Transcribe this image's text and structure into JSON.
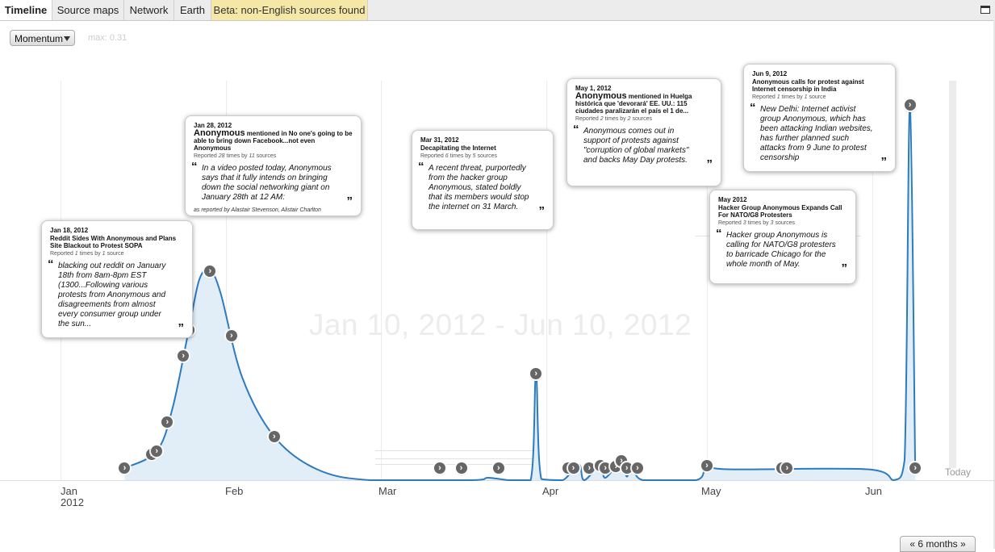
{
  "tabs": [
    {
      "label": "Timeline",
      "active": true
    },
    {
      "label": "Source maps"
    },
    {
      "label": "Network"
    },
    {
      "label": "Earth"
    },
    {
      "label": "Beta: non-English sources found",
      "highlight": true
    }
  ],
  "controls": {
    "metric_select": "Momentum",
    "max_label": "max: 0.31",
    "range_button": "« 6 months »",
    "today_label": "Today"
  },
  "watermark": "Jan 10, 2012 - Jun 10, 2012",
  "axis": {
    "months": [
      "Jan",
      "Feb",
      "Mar",
      "Apr",
      "May",
      "Jun"
    ],
    "year": "2012"
  },
  "cards": [
    {
      "date": "Jan 18, 2012",
      "title": "Reddit Sides With Anonymous and Plans Site Blackout to Protest SOPA",
      "reported_times": "1",
      "reported_sources": "1",
      "quote": "blacking out reddit on January 18th from 8am-8pm EST (1300...Following various protests from Anonymous and disagreements from almost every consumer group under the sun..."
    },
    {
      "date": "Jan 28, 2012",
      "title_big": "Anonymous",
      "title": "mentioned in No one's going to be able to bring down Facebook...not even Anonymous",
      "reported_times": "28",
      "reported_sources": "11",
      "quote": "In a video posted today, Anonymous says that it fully intends on bringing down the social networking giant on January 28th at 12 AM:",
      "byline": "as reported by Alastair Stevenson, Alistair Charlton"
    },
    {
      "date": "Mar 31, 2012",
      "title": "Decapitating the Internet",
      "reported_times": "6",
      "reported_sources": "5",
      "quote": "A recent threat, purportedly from the hacker group Anonymous, stated boldly that its members would stop the internet on 31 March."
    },
    {
      "date": "May 1, 2012",
      "title_big": "Anonymous",
      "title": "mentioned in Huelga histórica que 'devorará' EE. UU.: 115 ciudades paralizarán el país el 1 de...",
      "reported_times": "2",
      "reported_sources": "2",
      "quote": "Anonymous comes out in support of protests against \"corruption of global markets\" and backs May Day protests."
    },
    {
      "date": "Jun 9, 2012",
      "title": "Anonymous calls for protest against Internet censorship in India",
      "reported_times": "1",
      "reported_sources": "1",
      "quote": "New Delhi: Internet activist group Anonymous, which has been attacking Indian websites, has further planned such attacks from 9 June to protest censorship"
    },
    {
      "date": "May 2012",
      "title": "Hacker Group Anonymous Expands Call For NATO/G8 Protesters",
      "reported_times": "3",
      "reported_sources": "3",
      "quote": "Hacker group Anonymous is calling for NATO/G8 protesters to barricade Chicago for the whole month of May."
    }
  ],
  "labels": {
    "reported": "Reported",
    "times_by": "times by",
    "sources": "sources",
    "source": "source",
    "open_quote": "“",
    "close_quote": "”",
    "marker_glyph": "›"
  },
  "chart_data": {
    "type": "area",
    "title": "",
    "x_range": [
      "2012-01-10",
      "2012-06-10"
    ],
    "y_max": 0.31,
    "series": [
      {
        "color": "#2c7bbf",
        "points": [
          [
            "2012-01-13",
            0.01
          ],
          [
            "2012-01-19",
            0.024
          ],
          [
            "2012-01-22",
            0.06
          ],
          [
            "2012-01-25",
            0.124
          ],
          [
            "2012-01-27",
            0.166
          ],
          [
            "2012-01-29",
            0.173
          ],
          [
            "2012-01-31",
            0.154
          ],
          [
            "2012-02-04",
            0.085
          ],
          [
            "2012-02-10",
            0.036
          ],
          [
            "2012-02-18",
            0.009
          ],
          [
            "2012-02-28",
            0.0
          ],
          [
            "2012-03-18",
            0.0
          ],
          [
            "2012-03-21",
            0.002
          ],
          [
            "2012-03-25",
            0.0
          ],
          [
            "2012-03-29",
            0.0
          ],
          [
            "2012-03-30",
            0.088
          ],
          [
            "2012-03-31",
            0.001
          ],
          [
            "2012-04-04",
            0.0
          ],
          [
            "2012-04-07",
            0.013
          ],
          [
            "2012-04-08",
            0.0
          ],
          [
            "2012-04-11",
            0.012
          ],
          [
            "2012-04-12",
            0.002
          ],
          [
            "2012-04-15",
            0.016
          ],
          [
            "2012-04-16",
            0.003
          ],
          [
            "2012-04-17",
            0.013
          ],
          [
            "2012-04-19",
            0.0
          ],
          [
            "2012-04-29",
            0.0
          ],
          [
            "2012-05-01",
            0.012
          ],
          [
            "2012-05-05",
            0.009
          ],
          [
            "2012-05-31",
            0.009
          ],
          [
            "2012-06-05",
            0.0
          ],
          [
            "2012-06-07",
            0.017
          ],
          [
            "2012-06-08",
            0.31
          ],
          [
            "2012-06-09",
            0.006
          ]
        ]
      }
    ],
    "markers": [
      "2012-01-13",
      "2012-01-18",
      "2012-01-19",
      "2012-01-21",
      "2012-01-24",
      "2012-01-25",
      "2012-01-25",
      "2012-01-25",
      "2012-01-25",
      "2012-01-29",
      "2012-02-02",
      "2012-02-10",
      "2012-03-12",
      "2012-03-16",
      "2012-03-16",
      "2012-03-23",
      "2012-03-30",
      "2012-03-30",
      "2012-04-05",
      "2012-04-06",
      "2012-04-09",
      "2012-04-11",
      "2012-04-11",
      "2012-04-12",
      "2012-04-14",
      "2012-04-15",
      "2012-04-15",
      "2012-04-16",
      "2012-04-16",
      "2012-04-18",
      "2012-05-01",
      "2012-05-15",
      "2012-05-15",
      "2012-05-16",
      "2012-06-08",
      "2012-06-08",
      "2012-06-08",
      "2012-06-08",
      "2012-06-09"
    ]
  }
}
